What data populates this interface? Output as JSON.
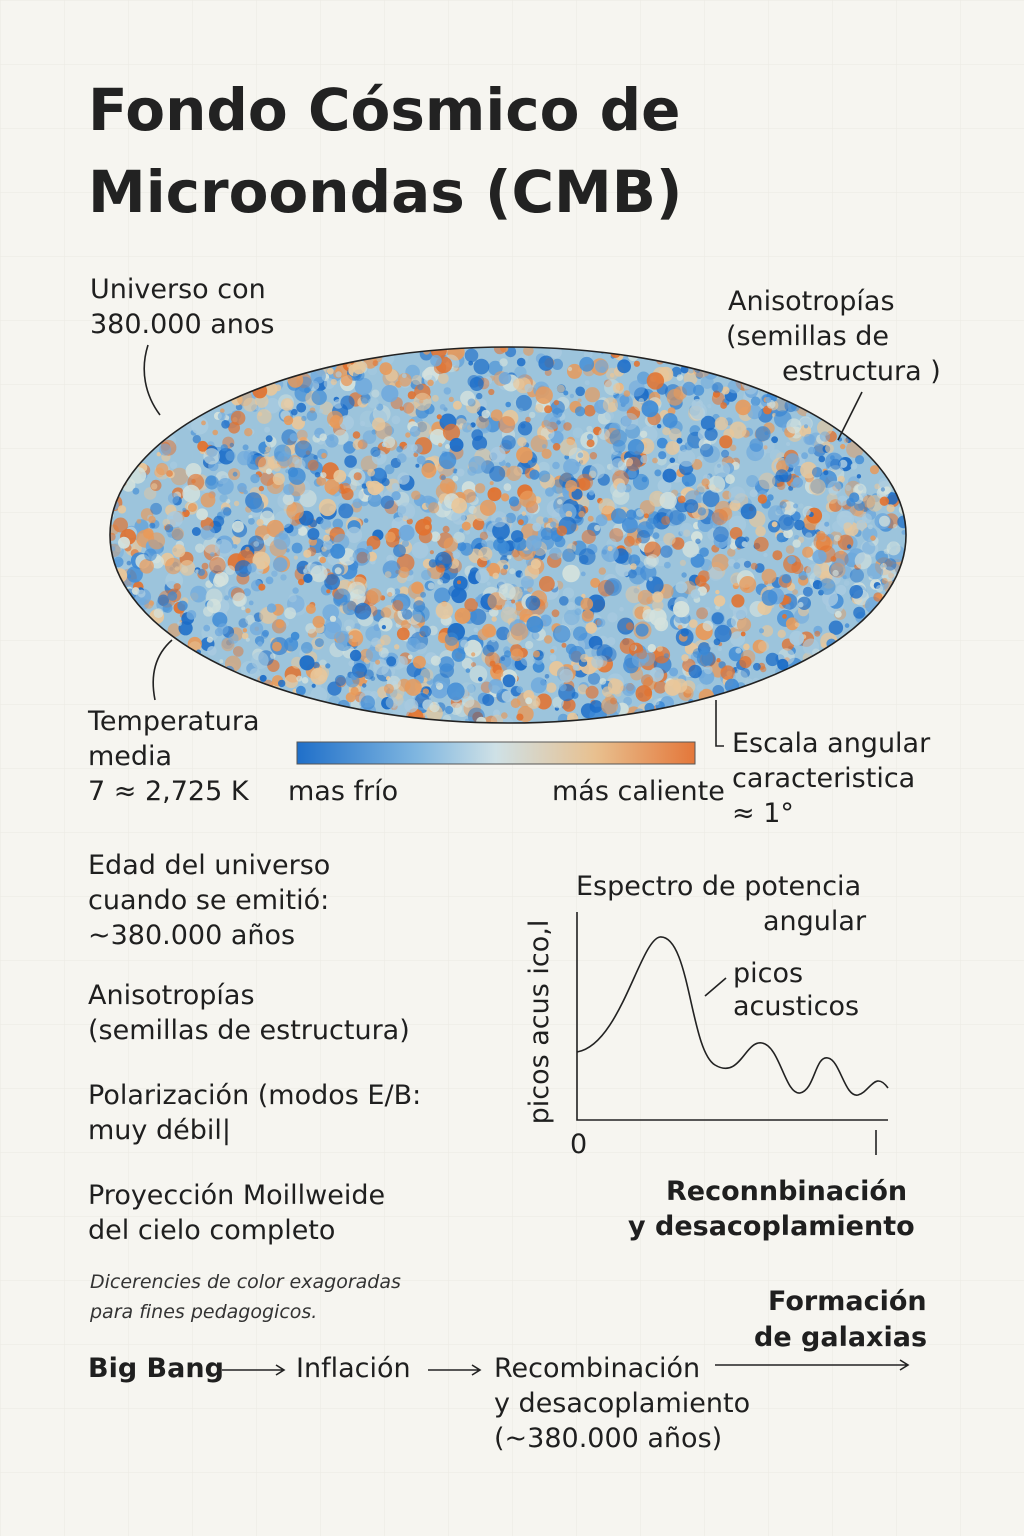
{
  "header": {
    "title": [
      "Fondo Cósmico de",
      "Microondas (CMB)"
    ]
  },
  "map": {
    "annotations": {
      "age": [
        "Universo con",
        "380.000 anos"
      ],
      "anisotropies": [
        "Anisotropías",
        "(semillas de",
        "estructura )"
      ],
      "temperature": [
        "Temperatura",
        "media",
        "7 ≈ 2,725 K"
      ],
      "scale": [
        "Escala angular",
        "caracteristica",
        "≈ 1°"
      ]
    },
    "colorbar": {
      "cold": "mas frío",
      "hot": "más caliente"
    }
  },
  "facts": [
    [
      "Edad del universo",
      "cuando se emitió:",
      "~380.000 años"
    ],
    [
      "Anisotropías",
      "(semillas de estructura)"
    ],
    [
      "Polarización (modos E/B:",
      "muy débil|"
    ],
    [
      "Proyección Moillweide",
      "del cielo completo"
    ]
  ],
  "note": [
    "Dicerencies de color exagoradas",
    "para fines pedagogicos."
  ],
  "spectrum": {
    "title": [
      "Espectro de potencia",
      "angular"
    ],
    "y_label": "picos acus ico,l",
    "x_start": "0",
    "peaks_label": [
      "picos",
      "acusticos"
    ],
    "caption": [
      "Reconnbinación",
      "y desacoplamiento"
    ]
  },
  "timeline": {
    "steps": [
      [
        "Big Bang"
      ],
      [
        "Inflación"
      ],
      [
        "Recombinación",
        "y desacoplamiento",
        "(~380.000 años)"
      ],
      [
        "Formación",
        "de galaxias"
      ]
    ]
  }
}
